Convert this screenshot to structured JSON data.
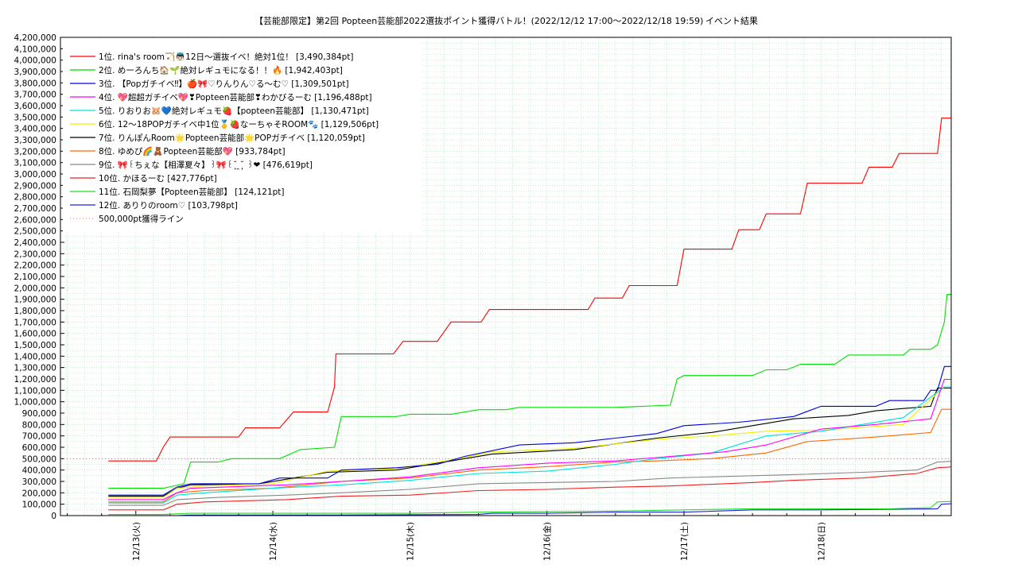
{
  "chart_data": {
    "type": "line",
    "title": "【芸能部限定】第2回 Popteen芸能部2022選抜ポイント獲得バトル！(2022/12/12 17:00〜2022/12/18 19:59)",
    "subtitle": "イベント結果",
    "xlabel": "",
    "ylabel": "",
    "xlim": [
      12.45,
      18.95
    ],
    "ylim": [
      0,
      4200000
    ],
    "grid": true,
    "legend_position": "top-left",
    "x_ticks": [
      {
        "value": 13,
        "label": "12/13(火)"
      },
      {
        "value": 14,
        "label": "12/14(水)"
      },
      {
        "value": 15,
        "label": "12/15(木)"
      },
      {
        "value": 16,
        "label": "12/16(金)"
      },
      {
        "value": 17,
        "label": "12/17(土)"
      },
      {
        "value": 18,
        "label": "12/18(日)"
      }
    ],
    "y_tick_step": 100000,
    "x_note": "x values are days of December 2022 (day + fraction of day)",
    "reference_line": {
      "name": "500,000pt獲得ライン",
      "value": 500000,
      "color": "#e07070"
    },
    "series": [
      {
        "name": "1位. rina's room🏹👼🏻12日〜選抜イベ！絶対1位！ [3,490,384pt]",
        "color": "#ff0000",
        "points": [
          [
            12.8,
            480000
          ],
          [
            13.15,
            480000
          ],
          [
            13.2,
            600000
          ],
          [
            13.25,
            690000
          ],
          [
            13.75,
            690000
          ],
          [
            13.8,
            770000
          ],
          [
            14.05,
            770000
          ],
          [
            14.15,
            910000
          ],
          [
            14.4,
            910000
          ],
          [
            14.45,
            1130000
          ],
          [
            14.46,
            1420000
          ],
          [
            14.88,
            1420000
          ],
          [
            14.95,
            1530000
          ],
          [
            15.2,
            1530000
          ],
          [
            15.3,
            1700000
          ],
          [
            15.52,
            1700000
          ],
          [
            15.58,
            1810000
          ],
          [
            16.3,
            1810000
          ],
          [
            16.35,
            1910000
          ],
          [
            16.55,
            1910000
          ],
          [
            16.6,
            2020000
          ],
          [
            16.95,
            2020000
          ],
          [
            17.0,
            2340000
          ],
          [
            17.35,
            2340000
          ],
          [
            17.4,
            2510000
          ],
          [
            17.55,
            2510000
          ],
          [
            17.6,
            2650000
          ],
          [
            17.85,
            2650000
          ],
          [
            17.9,
            2920000
          ],
          [
            18.3,
            2920000
          ],
          [
            18.35,
            3060000
          ],
          [
            18.52,
            3060000
          ],
          [
            18.57,
            3180000
          ],
          [
            18.85,
            3180000
          ],
          [
            18.88,
            3490384
          ],
          [
            18.95,
            3490384
          ]
        ]
      },
      {
        "name": "2位. めーろんち🏠🌱絶対レギュモになる！！🔥 [1,942,403pt]",
        "color": "#00e000",
        "points": [
          [
            12.8,
            240000
          ],
          [
            13.2,
            240000
          ],
          [
            13.35,
            280000
          ],
          [
            13.4,
            470000
          ],
          [
            13.6,
            470000
          ],
          [
            13.7,
            500000
          ],
          [
            14.05,
            500000
          ],
          [
            14.2,
            580000
          ],
          [
            14.45,
            600000
          ],
          [
            14.5,
            870000
          ],
          [
            14.9,
            870000
          ],
          [
            15.0,
            890000
          ],
          [
            15.3,
            890000
          ],
          [
            15.5,
            930000
          ],
          [
            15.7,
            930000
          ],
          [
            15.8,
            950000
          ],
          [
            16.5,
            950000
          ],
          [
            16.9,
            970000
          ],
          [
            16.95,
            1200000
          ],
          [
            17.0,
            1230000
          ],
          [
            17.5,
            1230000
          ],
          [
            17.6,
            1280000
          ],
          [
            17.75,
            1280000
          ],
          [
            17.85,
            1330000
          ],
          [
            18.1,
            1330000
          ],
          [
            18.2,
            1410000
          ],
          [
            18.6,
            1410000
          ],
          [
            18.65,
            1460000
          ],
          [
            18.8,
            1460000
          ],
          [
            18.85,
            1500000
          ],
          [
            18.9,
            1700000
          ],
          [
            18.92,
            1942403
          ],
          [
            18.95,
            1942403
          ]
        ]
      },
      {
        "name": "3位. 【Popガチイベ‼】🍎🎀♡りんりん♡る〜む♡ [1,309,501pt]",
        "color": "#0000dd",
        "points": [
          [
            12.8,
            180000
          ],
          [
            13.2,
            180000
          ],
          [
            13.3,
            250000
          ],
          [
            13.4,
            280000
          ],
          [
            13.9,
            280000
          ],
          [
            14.05,
            330000
          ],
          [
            14.4,
            330000
          ],
          [
            14.5,
            400000
          ],
          [
            14.9,
            420000
          ],
          [
            15.2,
            450000
          ],
          [
            15.4,
            520000
          ],
          [
            15.6,
            570000
          ],
          [
            15.8,
            620000
          ],
          [
            16.2,
            640000
          ],
          [
            16.5,
            680000
          ],
          [
            16.8,
            720000
          ],
          [
            17.0,
            790000
          ],
          [
            17.4,
            820000
          ],
          [
            17.8,
            870000
          ],
          [
            18.0,
            960000
          ],
          [
            18.4,
            960000
          ],
          [
            18.5,
            1010000
          ],
          [
            18.75,
            1010000
          ],
          [
            18.8,
            1100000
          ],
          [
            18.85,
            1100000
          ],
          [
            18.9,
            1309501
          ],
          [
            18.95,
            1309501
          ]
        ]
      },
      {
        "name": "4位. 💖超超ガチイベ💖❣Popteen芸能部❣わかびるーむ [1,196,488pt]",
        "color": "#ff00ff",
        "points": [
          [
            12.8,
            140000
          ],
          [
            13.2,
            140000
          ],
          [
            13.3,
            200000
          ],
          [
            13.4,
            240000
          ],
          [
            14.1,
            270000
          ],
          [
            14.5,
            300000
          ],
          [
            15.0,
            340000
          ],
          [
            15.5,
            420000
          ],
          [
            16.0,
            460000
          ],
          [
            16.5,
            480000
          ],
          [
            16.9,
            520000
          ],
          [
            17.3,
            560000
          ],
          [
            17.6,
            620000
          ],
          [
            18.0,
            760000
          ],
          [
            18.4,
            800000
          ],
          [
            18.8,
            850000
          ],
          [
            18.9,
            1196488
          ],
          [
            18.95,
            1196488
          ]
        ]
      },
      {
        "name": "5位. りおりお🐹💙絶対レギュモ🍓【popteen芸能部】 [1,130,471pt]",
        "color": "#00e0e0",
        "points": [
          [
            12.8,
            110000
          ],
          [
            13.2,
            110000
          ],
          [
            13.3,
            180000
          ],
          [
            13.5,
            200000
          ],
          [
            14.0,
            240000
          ],
          [
            14.5,
            270000
          ],
          [
            15.0,
            310000
          ],
          [
            15.5,
            370000
          ],
          [
            16.0,
            390000
          ],
          [
            16.5,
            450000
          ],
          [
            16.8,
            500000
          ],
          [
            17.2,
            550000
          ],
          [
            17.6,
            700000
          ],
          [
            18.0,
            740000
          ],
          [
            18.6,
            860000
          ],
          [
            18.9,
            1130471
          ],
          [
            18.95,
            1130471
          ]
        ]
      },
      {
        "name": "6位. 12〜18POPガチイベ中1位🥇🍓なーちゃそROOM🐾 [1,129,506pt]",
        "color": "#f0f000",
        "points": [
          [
            12.8,
            160000
          ],
          [
            13.2,
            160000
          ],
          [
            13.3,
            240000
          ],
          [
            13.5,
            260000
          ],
          [
            14.0,
            280000
          ],
          [
            14.4,
            390000
          ],
          [
            14.9,
            410000
          ],
          [
            15.4,
            510000
          ],
          [
            15.6,
            560000
          ],
          [
            16.2,
            590000
          ],
          [
            16.8,
            670000
          ],
          [
            17.2,
            700000
          ],
          [
            17.6,
            740000
          ],
          [
            18.0,
            750000
          ],
          [
            18.6,
            800000
          ],
          [
            18.9,
            1129506
          ],
          [
            18.95,
            1129506
          ]
        ]
      },
      {
        "name": "7位. りんぽんRoom🌟Popteen芸能部🌟POPガチイベ [1,120,059pt]",
        "color": "#000000",
        "points": [
          [
            12.8,
            170000
          ],
          [
            13.2,
            170000
          ],
          [
            13.3,
            240000
          ],
          [
            13.4,
            270000
          ],
          [
            13.9,
            280000
          ],
          [
            14.4,
            380000
          ],
          [
            14.9,
            400000
          ],
          [
            15.4,
            500000
          ],
          [
            15.6,
            540000
          ],
          [
            16.2,
            580000
          ],
          [
            16.8,
            680000
          ],
          [
            17.2,
            730000
          ],
          [
            17.5,
            790000
          ],
          [
            17.8,
            850000
          ],
          [
            18.2,
            880000
          ],
          [
            18.4,
            920000
          ],
          [
            18.8,
            960000
          ],
          [
            18.85,
            1120059
          ],
          [
            18.95,
            1120059
          ]
        ]
      },
      {
        "name": "8位. ゆめぴ🌈🧸Popteen芸能部💖 [933,784pt]",
        "color": "#ff6600",
        "points": [
          [
            12.8,
            120000
          ],
          [
            13.2,
            120000
          ],
          [
            13.3,
            200000
          ],
          [
            13.5,
            220000
          ],
          [
            14.0,
            240000
          ],
          [
            14.5,
            300000
          ],
          [
            15.0,
            330000
          ],
          [
            15.5,
            400000
          ],
          [
            16.0,
            430000
          ],
          [
            16.5,
            470000
          ],
          [
            16.8,
            480000
          ],
          [
            17.2,
            500000
          ],
          [
            17.6,
            550000
          ],
          [
            17.9,
            650000
          ],
          [
            18.4,
            690000
          ],
          [
            18.8,
            730000
          ],
          [
            18.88,
            933784
          ],
          [
            18.95,
            933784
          ]
        ]
      },
      {
        "name": "9位. 🎀꒰ちぇな【相澤夏々】꒱🎀꒰˘̩̩̩ ̯˘̩̩̩ ꒱❤ [476,619pt]",
        "color": "#888888",
        "points": [
          [
            12.8,
            90000
          ],
          [
            13.2,
            90000
          ],
          [
            13.3,
            140000
          ],
          [
            13.6,
            160000
          ],
          [
            14.1,
            180000
          ],
          [
            14.5,
            200000
          ],
          [
            15.0,
            230000
          ],
          [
            15.5,
            280000
          ],
          [
            16.0,
            290000
          ],
          [
            16.5,
            300000
          ],
          [
            16.9,
            330000
          ],
          [
            17.5,
            350000
          ],
          [
            17.8,
            360000
          ],
          [
            18.3,
            380000
          ],
          [
            18.7,
            400000
          ],
          [
            18.85,
            470000
          ],
          [
            18.95,
            476619
          ]
        ]
      },
      {
        "name": "10位. かほるーむ [427,776pt]",
        "color": "#ee2222",
        "points": [
          [
            12.8,
            50000
          ],
          [
            13.2,
            50000
          ],
          [
            13.3,
            100000
          ],
          [
            13.5,
            120000
          ],
          [
            14.1,
            140000
          ],
          [
            14.5,
            170000
          ],
          [
            15.0,
            180000
          ],
          [
            15.5,
            220000
          ],
          [
            16.0,
            230000
          ],
          [
            16.5,
            250000
          ],
          [
            16.9,
            260000
          ],
          [
            17.5,
            290000
          ],
          [
            17.8,
            310000
          ],
          [
            18.3,
            330000
          ],
          [
            18.7,
            370000
          ],
          [
            18.85,
            420000
          ],
          [
            18.95,
            427776
          ]
        ]
      },
      {
        "name": "11位. 石岡梨夢【Popteen芸能部】 [124,121pt]",
        "color": "#22dd22",
        "points": [
          [
            12.8,
            10000
          ],
          [
            13.2,
            10000
          ],
          [
            13.4,
            20000
          ],
          [
            14.5,
            20000
          ],
          [
            15.0,
            20000
          ],
          [
            15.5,
            30000
          ],
          [
            16.5,
            40000
          ],
          [
            17.0,
            50000
          ],
          [
            17.5,
            60000
          ],
          [
            18.0,
            60000
          ],
          [
            18.5,
            60000
          ],
          [
            18.8,
            70000
          ],
          [
            18.85,
            120000
          ],
          [
            18.95,
            124121
          ]
        ]
      },
      {
        "name": "12位. ありりのroom♡ [103,798pt]",
        "color": "#2222dd",
        "points": [
          [
            12.8,
            0
          ],
          [
            13.3,
            0
          ],
          [
            13.4,
            5000
          ],
          [
            14.5,
            5000
          ],
          [
            15.5,
            10000
          ],
          [
            15.6,
            20000
          ],
          [
            16.0,
            20000
          ],
          [
            16.5,
            30000
          ],
          [
            17.0,
            30000
          ],
          [
            17.5,
            50000
          ],
          [
            18.0,
            50000
          ],
          [
            18.5,
            55000
          ],
          [
            18.85,
            60000
          ],
          [
            18.88,
            100000
          ],
          [
            18.95,
            103798
          ]
        ]
      }
    ]
  }
}
